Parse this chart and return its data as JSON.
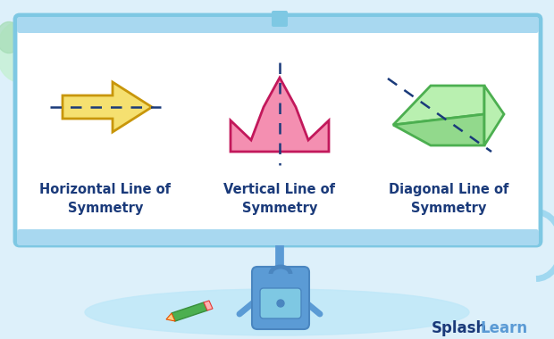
{
  "bg_color": "#ddf0fa",
  "board_bg": "#ffffff",
  "board_border": "#7ec8e3",
  "board_border_bar": "#a8d8f0",
  "label_color": "#1a3a7a",
  "arrow_fill": "#f5e070",
  "arrow_outline": "#c8960a",
  "crown_fill": "#f48fb1",
  "crown_outline": "#c2185b",
  "shape3_fill": "#b9f0b0",
  "shape3_outline": "#4caf50",
  "dashed_color": "#1a3a7a",
  "label1": "Horizontal Line of\nSymmetry",
  "label2": "Vertical Line of\nSymmetry",
  "label3": "Diagonal Line of\nSymmetry",
  "label_fontsize": 10.5,
  "splash_bold_color": "#1a3a7a",
  "splash_light_color": "#5b9bd5",
  "splash_fontsize": 12,
  "green_blob_color": "#c8f0d8",
  "cyan_arc_color": "#a0d8f0",
  "floor_color": "#c0e8f8",
  "tripod_color": "#5b9bd5",
  "backpack_color": "#5b9bd5",
  "backpack_pocket": "#7ec8e3",
  "pencil_body": "#4caf50",
  "pencil_tip": "#ffcc80"
}
